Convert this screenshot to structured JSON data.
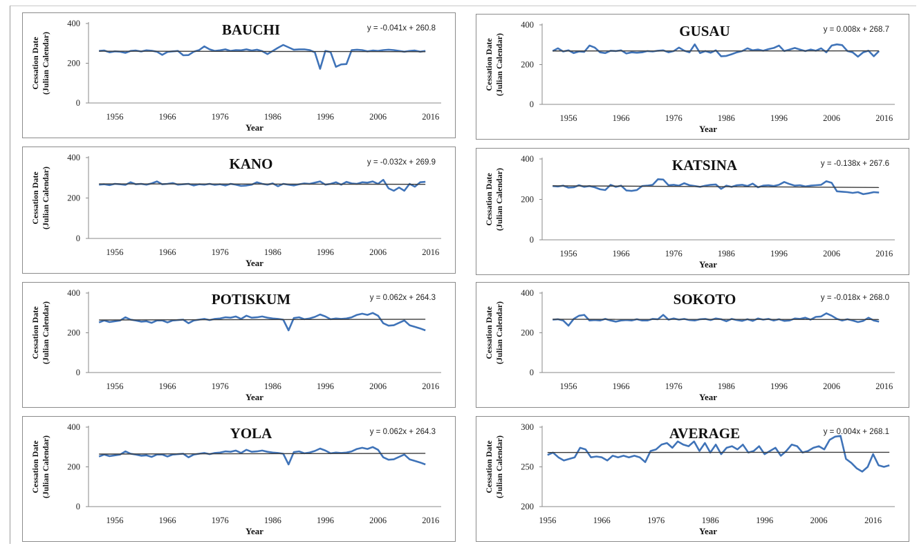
{
  "chart_data": [
    {
      "type": "line",
      "title": "BAUCHI",
      "equation": "y = -0.041x + 260.8",
      "xlabel": "Year",
      "ylabel": [
        "Cessation Date",
        "(Julian Calendar)"
      ],
      "ylim": [
        0,
        400
      ],
      "yticks": [
        0,
        200,
        400
      ],
      "xlim": [
        1951,
        2018
      ],
      "xticks": [
        1956,
        1966,
        1976,
        1986,
        1996,
        2006,
        2016
      ],
      "x_start": 1953,
      "x_end": 2015,
      "values": [
        262,
        264,
        255,
        260,
        258,
        252,
        262,
        264,
        259,
        265,
        263,
        258,
        242,
        257,
        260,
        262,
        240,
        241,
        258,
        266,
        285,
        270,
        262,
        265,
        270,
        262,
        266,
        265,
        270,
        264,
        268,
        261,
        246,
        262,
        278,
        292,
        280,
        268,
        270,
        270,
        266,
        255,
        172,
        262,
        256,
        182,
        194,
        196,
        266,
        268,
        266,
        260,
        264,
        262,
        266,
        268,
        266,
        262,
        258,
        262,
        264,
        258,
        262
      ],
      "trend": {
        "slope": -0.041,
        "intercept": 260.8
      }
    },
    {
      "type": "line",
      "title": "GUSAU",
      "equation": "y = 0.008x + 268.7",
      "xlabel": "Year",
      "ylabel": [
        "Cessation Date",
        "(Julian Calendar)"
      ],
      "ylim": [
        0,
        400
      ],
      "yticks": [
        0,
        200,
        400
      ],
      "xlim": [
        1951,
        2018
      ],
      "xticks": [
        1956,
        1966,
        1976,
        1986,
        1996,
        2006,
        2016
      ],
      "x_start": 1953,
      "x_end": 2015,
      "values": [
        268,
        282,
        266,
        272,
        258,
        266,
        264,
        296,
        286,
        262,
        258,
        270,
        268,
        272,
        256,
        262,
        260,
        262,
        268,
        266,
        270,
        272,
        262,
        268,
        286,
        270,
        262,
        302,
        258,
        268,
        260,
        272,
        242,
        244,
        252,
        262,
        268,
        282,
        272,
        276,
        270,
        278,
        284,
        296,
        268,
        276,
        284,
        276,
        268,
        276,
        270,
        282,
        262,
        296,
        302,
        298,
        268,
        262,
        240,
        262,
        270,
        242,
        268
      ],
      "trend": {
        "slope": 0.008,
        "intercept": 268.7
      }
    },
    {
      "type": "line",
      "title": "KANO",
      "equation": "y = -0.032x + 269.9",
      "xlabel": "Year",
      "ylabel": [
        "Cessation Date",
        "(Julian Calendar)"
      ],
      "ylim": [
        0,
        400
      ],
      "yticks": [
        0,
        200,
        400
      ],
      "xlim": [
        1951,
        2018
      ],
      "xticks": [
        1956,
        1966,
        1976,
        1986,
        1996,
        2006,
        2016
      ],
      "x_start": 1953,
      "x_end": 2015,
      "values": [
        266,
        268,
        264,
        270,
        268,
        265,
        278,
        268,
        270,
        266,
        272,
        282,
        268,
        270,
        274,
        266,
        268,
        270,
        262,
        268,
        266,
        270,
        265,
        268,
        262,
        270,
        266,
        260,
        262,
        266,
        278,
        270,
        266,
        272,
        258,
        270,
        266,
        262,
        268,
        272,
        270,
        276,
        282,
        266,
        270,
        278,
        266,
        280,
        272,
        270,
        278,
        276,
        282,
        270,
        290,
        248,
        236,
        252,
        236,
        270,
        256,
        278,
        280
      ],
      "trend": {
        "slope": -0.032,
        "intercept": 269.9
      }
    },
    {
      "type": "line",
      "title": "KATSINA",
      "equation": "y = -0.138x + 267.6",
      "xlabel": "Year",
      "ylabel": [
        "Cessation Date",
        "(Julian Calendar)"
      ],
      "ylim": [
        0,
        400
      ],
      "yticks": [
        0,
        200,
        400
      ],
      "xlim": [
        1951,
        2018
      ],
      "xticks": [
        1956,
        1966,
        1976,
        1986,
        1996,
        2006,
        2016
      ],
      "x_start": 1953,
      "x_end": 2015,
      "values": [
        266,
        264,
        268,
        258,
        260,
        270,
        262,
        266,
        260,
        250,
        246,
        272,
        262,
        268,
        244,
        242,
        246,
        266,
        268,
        272,
        300,
        298,
        270,
        272,
        268,
        280,
        270,
        266,
        262,
        268,
        272,
        274,
        252,
        268,
        262,
        270,
        272,
        266,
        278,
        260,
        268,
        270,
        266,
        272,
        286,
        276,
        268,
        270,
        264,
        268,
        270,
        272,
        290,
        282,
        240,
        238,
        236,
        232,
        236,
        226,
        230,
        236,
        234
      ],
      "trend": {
        "slope": -0.138,
        "intercept": 267.6
      }
    },
    {
      "type": "line",
      "title": "POTISKUM",
      "equation": "y = 0.062x + 264.3",
      "xlabel": "Year",
      "ylabel": [
        "Cessation Date",
        "(Julian Calendar)"
      ],
      "ylim": [
        0,
        400
      ],
      "yticks": [
        0,
        200,
        400
      ],
      "xlim": [
        1951,
        2018
      ],
      "xticks": [
        1956,
        1966,
        1976,
        1986,
        1996,
        2006,
        2016
      ],
      "x_start": 1953,
      "x_end": 2015,
      "values": [
        252,
        262,
        254,
        258,
        262,
        278,
        266,
        262,
        256,
        258,
        250,
        262,
        262,
        252,
        262,
        264,
        266,
        248,
        262,
        266,
        270,
        264,
        270,
        272,
        278,
        276,
        282,
        270,
        286,
        276,
        278,
        282,
        276,
        272,
        270,
        266,
        212,
        274,
        278,
        268,
        272,
        280,
        292,
        282,
        268,
        272,
        270,
        272,
        278,
        290,
        296,
        290,
        300,
        286,
        248,
        236,
        238,
        250,
        262,
        238,
        230,
        222,
        212
      ],
      "trend": {
        "slope": 0.062,
        "intercept": 264.3
      }
    },
    {
      "type": "line",
      "title": "SOKOTO",
      "equation": "y = -0.018x + 268.0",
      "xlabel": "Year",
      "ylabel": [
        "Cessation Date",
        "(Julian Calendar)"
      ],
      "ylim": [
        0,
        400
      ],
      "yticks": [
        0,
        200,
        400
      ],
      "xlim": [
        1951,
        2018
      ],
      "xticks": [
        1956,
        1966,
        1976,
        1986,
        1996,
        2006,
        2016
      ],
      "x_start": 1953,
      "x_end": 2015,
      "values": [
        266,
        268,
        262,
        236,
        270,
        286,
        290,
        262,
        264,
        262,
        270,
        262,
        256,
        262,
        264,
        262,
        268,
        262,
        262,
        270,
        268,
        290,
        266,
        272,
        266,
        270,
        264,
        262,
        268,
        270,
        264,
        272,
        268,
        258,
        270,
        264,
        260,
        268,
        260,
        272,
        266,
        270,
        262,
        268,
        260,
        262,
        272,
        270,
        276,
        266,
        280,
        282,
        298,
        286,
        270,
        262,
        268,
        262,
        254,
        260,
        276,
        262,
        256
      ],
      "trend": {
        "slope": -0.018,
        "intercept": 268.0
      }
    },
    {
      "type": "line",
      "title": "YOLA",
      "equation": "y = 0.062x + 264.3",
      "xlabel": "Year",
      "ylabel": [
        "Cessation Date",
        "(Julian Calendar)"
      ],
      "ylim": [
        0,
        400
      ],
      "yticks": [
        0,
        200,
        400
      ],
      "xlim": [
        1951,
        2018
      ],
      "xticks": [
        1956,
        1966,
        1976,
        1986,
        1996,
        2006,
        2016
      ],
      "x_start": 1953,
      "x_end": 2015,
      "values": [
        252,
        262,
        254,
        258,
        262,
        278,
        266,
        262,
        256,
        258,
        250,
        262,
        262,
        252,
        262,
        264,
        266,
        248,
        262,
        266,
        270,
        264,
        270,
        272,
        278,
        276,
        282,
        270,
        286,
        276,
        278,
        282,
        276,
        272,
        270,
        266,
        212,
        274,
        278,
        268,
        272,
        280,
        292,
        282,
        268,
        272,
        270,
        272,
        278,
        290,
        296,
        290,
        300,
        286,
        248,
        236,
        238,
        250,
        262,
        238,
        230,
        222,
        212
      ],
      "trend": {
        "slope": 0.062,
        "intercept": 264.3
      }
    },
    {
      "type": "line",
      "title": "AVERAGE",
      "equation": "y = 0.004x + 268.1",
      "xlabel": "Year",
      "ylabel": [
        "Cessation Date",
        "(Julian Calendar)"
      ],
      "ylim": [
        200,
        300
      ],
      "yticks": [
        200,
        250,
        300
      ],
      "xlim": [
        1955,
        2020
      ],
      "xticks": [
        1956,
        1966,
        1976,
        1986,
        1996,
        2006,
        2016
      ],
      "x_start": 1956,
      "x_end": 2019,
      "values": [
        265,
        268,
        262,
        258,
        260,
        262,
        274,
        272,
        262,
        263,
        262,
        258,
        264,
        262,
        264,
        262,
        264,
        262,
        256,
        270,
        272,
        278,
        280,
        274,
        282,
        278,
        276,
        282,
        270,
        280,
        268,
        278,
        266,
        274,
        276,
        272,
        278,
        268,
        270,
        276,
        266,
        270,
        274,
        264,
        270,
        278,
        276,
        268,
        270,
        274,
        276,
        272,
        284,
        288,
        289,
        260,
        255,
        248,
        244,
        250,
        266,
        252,
        250,
        252
      ],
      "trend": {
        "slope": 0.004,
        "intercept": 268.1
      }
    }
  ]
}
